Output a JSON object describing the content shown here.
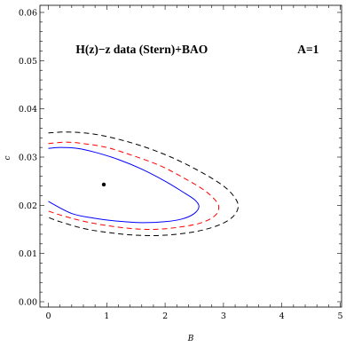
{
  "chart_data": {
    "type": "contour",
    "xlabel": "B",
    "ylabel": "c",
    "xlim": [
      0,
      5
    ],
    "ylim": [
      0,
      0.06
    ],
    "x_ticks": [
      0,
      1,
      2,
      3,
      4,
      5
    ],
    "x_tick_labels": [
      "0",
      "1",
      "2",
      "3",
      "4",
      "5"
    ],
    "y_ticks": [
      0.0,
      0.01,
      0.02,
      0.03,
      0.04,
      0.05,
      0.06
    ],
    "y_tick_labels": [
      "0.00",
      "0.01",
      "0.02",
      "0.03",
      "0.04",
      "0.05",
      "0.06"
    ],
    "annotations": [
      {
        "text": "H(z)−z data (Stern)+BAO",
        "x": 1.6,
        "y": 0.0515
      },
      {
        "text": "A=1",
        "x": 4.45,
        "y": 0.0515
      }
    ],
    "best_fit_point": {
      "x": 0.95,
      "y": 0.0243
    },
    "contours": [
      {
        "color": "#0000ff",
        "dash": "solid",
        "points": [
          [
            0.0,
            0.0318
          ],
          [
            0.2,
            0.032
          ],
          [
            0.5,
            0.0318
          ],
          [
            0.8,
            0.031
          ],
          [
            1.2,
            0.0295
          ],
          [
            1.6,
            0.0275
          ],
          [
            2.0,
            0.025
          ],
          [
            2.3,
            0.0228
          ],
          [
            2.5,
            0.0212
          ],
          [
            2.58,
            0.0198
          ],
          [
            2.5,
            0.0183
          ],
          [
            2.3,
            0.0172
          ],
          [
            2.0,
            0.0166
          ],
          [
            1.6,
            0.0164
          ],
          [
            1.2,
            0.0167
          ],
          [
            0.8,
            0.0173
          ],
          [
            0.4,
            0.0183
          ],
          [
            0.0,
            0.0208
          ]
        ]
      },
      {
        "color": "#ff0000",
        "dash": "dashed",
        "points": [
          [
            0.0,
            0.0328
          ],
          [
            0.3,
            0.0331
          ],
          [
            0.6,
            0.0328
          ],
          [
            1.0,
            0.032
          ],
          [
            1.4,
            0.0305
          ],
          [
            1.9,
            0.0283
          ],
          [
            2.3,
            0.0258
          ],
          [
            2.65,
            0.0233
          ],
          [
            2.85,
            0.0212
          ],
          [
            2.92,
            0.0196
          ],
          [
            2.85,
            0.0178
          ],
          [
            2.6,
            0.0163
          ],
          [
            2.2,
            0.0154
          ],
          [
            1.8,
            0.015
          ],
          [
            1.4,
            0.0152
          ],
          [
            1.0,
            0.0158
          ],
          [
            0.6,
            0.0167
          ],
          [
            0.2,
            0.018
          ],
          [
            0.0,
            0.0188
          ]
        ]
      },
      {
        "color": "#000000",
        "dash": "dashed",
        "points": [
          [
            0.0,
            0.035
          ],
          [
            0.3,
            0.0352
          ],
          [
            0.7,
            0.0349
          ],
          [
            1.1,
            0.034
          ],
          [
            1.6,
            0.0323
          ],
          [
            2.1,
            0.03
          ],
          [
            2.6,
            0.027
          ],
          [
            3.0,
            0.024
          ],
          [
            3.2,
            0.0215
          ],
          [
            3.25,
            0.0195
          ],
          [
            3.15,
            0.0175
          ],
          [
            2.9,
            0.0158
          ],
          [
            2.5,
            0.0145
          ],
          [
            2.0,
            0.0138
          ],
          [
            1.5,
            0.0138
          ],
          [
            1.0,
            0.0144
          ],
          [
            0.6,
            0.0152
          ],
          [
            0.2,
            0.0166
          ],
          [
            0.0,
            0.0175
          ]
        ]
      }
    ]
  }
}
